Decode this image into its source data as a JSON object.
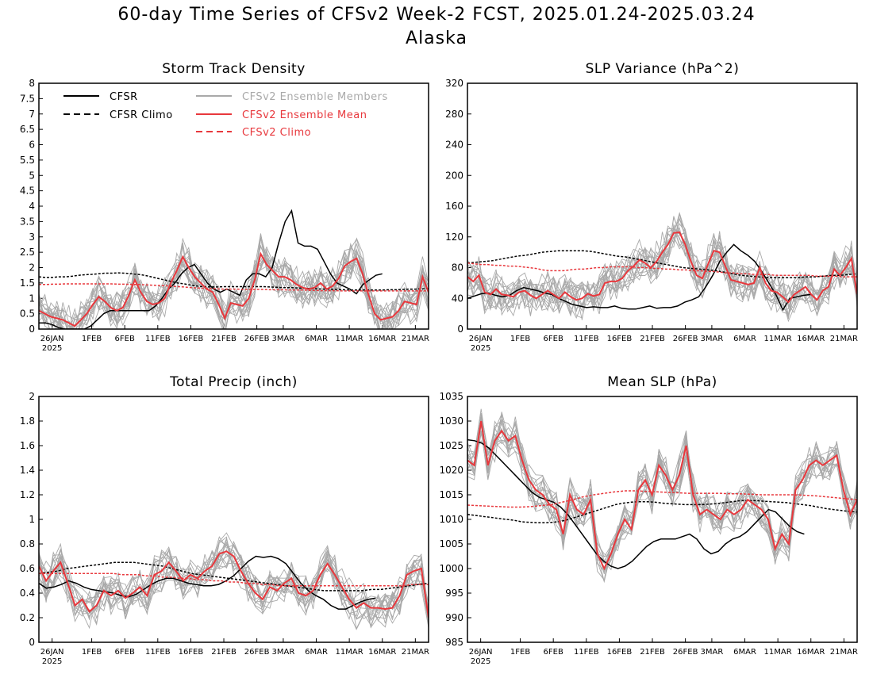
{
  "page": {
    "title": "60-day Time Series of CFSv2 Week-2 FCST, 2025.01.24-2025.03.24",
    "subtitle": "Alaska"
  },
  "colors": {
    "cfsr": "#000000",
    "members": "#a9a9a9",
    "mean": "#e8383d",
    "cfsv2_climo": "#e8383d",
    "cfsr_climo": "#000000"
  },
  "legend": {
    "cfsr": "CFSR",
    "cfsr_climo": "CFSR Climo",
    "members": "CFSv2 Ensemble Members",
    "mean": "CFSv2 Ensemble Mean",
    "cfsv2_climo": "CFSv2 Climo"
  },
  "x_axis": {
    "tick_labels": [
      "26JAN",
      "1FEB",
      "6FEB",
      "11FEB",
      "16FEB",
      "21FEB",
      "26FEB",
      "3MAR",
      "6MAR",
      "11MAR",
      "16MAR",
      "21MAR"
    ],
    "tick_days": [
      2,
      8,
      13,
      18,
      23,
      28,
      33,
      37,
      42,
      47,
      52,
      57
    ],
    "year_label": "2025",
    "day_range": [
      0,
      59
    ]
  },
  "chart_data": [
    {
      "type": "line",
      "title": "Storm Track Density",
      "ylim": [
        0,
        8
      ],
      "y_ticks": [
        "0",
        "0.5",
        "1",
        "1.5",
        "2",
        "2.5",
        "3",
        "3.5",
        "4",
        "4.5",
        "5",
        "5.5",
        "6",
        "6.5",
        "7",
        "7.5",
        "8"
      ],
      "series": [
        {
          "name": "CFSR",
          "values": [
            0.2,
            0.2,
            0.15,
            0.05,
            0,
            0,
            0,
            0,
            0.1,
            0.3,
            0.5,
            0.6,
            0.6,
            0.6,
            0.6,
            0.6,
            0.6,
            0.6,
            0.75,
            1.0,
            1.3,
            1.5,
            1.8,
            2.0,
            2.1,
            1.8,
            1.5,
            1.3,
            1.2,
            1.3,
            1.2,
            1.1,
            1.6,
            1.8,
            1.8,
            1.7,
            2.0,
            2.8,
            3.5,
            3.85,
            2.8,
            2.7,
            2.7,
            2.6,
            2.2,
            1.8,
            1.5,
            1.4,
            1.3,
            1.15,
            1.45,
            1.6,
            1.75,
            1.8
          ]
        },
        {
          "name": "CFSR Climo",
          "values": [
            1.7,
            1.68,
            1.68,
            1.7,
            1.7,
            1.72,
            1.75,
            1.77,
            1.78,
            1.8,
            1.82,
            1.82,
            1.83,
            1.82,
            1.8,
            1.78,
            1.75,
            1.7,
            1.65,
            1.6,
            1.55,
            1.5,
            1.47,
            1.43,
            1.4,
            1.38,
            1.37,
            1.37,
            1.38,
            1.38,
            1.38,
            1.38,
            1.38,
            1.38,
            1.38,
            1.37,
            1.36,
            1.35,
            1.35,
            1.34,
            1.33,
            1.32,
            1.31,
            1.3,
            1.3,
            1.29,
            1.28,
            1.27,
            1.27,
            1.27,
            1.27,
            1.27,
            1.27,
            1.28,
            1.28,
            1.29,
            1.3,
            1.3,
            1.31,
            1.32
          ]
        },
        {
          "name": "CFSv2 Ensemble Mean",
          "values": [
            0.6,
            0.5,
            0.4,
            0.35,
            0.3,
            0.2,
            0.1,
            0.3,
            0.5,
            0.8,
            1.05,
            0.9,
            0.7,
            0.6,
            0.7,
            1.1,
            1.6,
            1.2,
            0.9,
            0.8,
            0.85,
            1.0,
            1.5,
            1.9,
            2.35,
            2.0,
            1.7,
            1.5,
            1.3,
            1.2,
            0.8,
            0.35,
            0.85,
            0.8,
            0.75,
            1.0,
            1.6,
            2.45,
            2.1,
            1.9,
            1.7,
            1.7,
            1.6,
            1.45,
            1.35,
            1.3,
            1.35,
            1.5,
            1.3,
            1.4,
            1.65,
            2.05,
            2.2,
            2.3,
            1.8,
            1.1,
            0.5,
            0.3,
            0.35,
            0.4,
            0.6,
            0.9,
            0.85,
            0.8,
            1.7,
            1.2
          ]
        },
        {
          "name": "CFSv2 Climo",
          "values": [
            1.45,
            1.45,
            1.46,
            1.46,
            1.47,
            1.47,
            1.47,
            1.47,
            1.47,
            1.47,
            1.47,
            1.47,
            1.46,
            1.46,
            1.45,
            1.45,
            1.44,
            1.43,
            1.42,
            1.41,
            1.4,
            1.38,
            1.37,
            1.35,
            1.34,
            1.33,
            1.32,
            1.31,
            1.3,
            1.3,
            1.3,
            1.29,
            1.29,
            1.29,
            1.29,
            1.28,
            1.28,
            1.28,
            1.27,
            1.27,
            1.27,
            1.26,
            1.26,
            1.25,
            1.25,
            1.25,
            1.24,
            1.24,
            1.24,
            1.24,
            1.24,
            1.24,
            1.24,
            1.24,
            1.24,
            1.24,
            1.24,
            1.24,
            1.24,
            1.24
          ]
        }
      ]
    },
    {
      "type": "line",
      "title": "SLP Variance (hPa^2)",
      "ylim": [
        0,
        320
      ],
      "y_ticks": [
        "0",
        "40",
        "80",
        "120",
        "160",
        "200",
        "240",
        "280",
        "320"
      ],
      "series": [
        {
          "name": "CFSR",
          "values": [
            40,
            43,
            46,
            47,
            44,
            42,
            44,
            50,
            54,
            52,
            50,
            47,
            45,
            40,
            36,
            32,
            30,
            28,
            29,
            28,
            28,
            30,
            27,
            26,
            26,
            28,
            30,
            27,
            28,
            28,
            30,
            35,
            38,
            42,
            55,
            70,
            88,
            100,
            110,
            102,
            96,
            88,
            75,
            60,
            45,
            25,
            40,
            42,
            44,
            45
          ]
        },
        {
          "name": "CFSR Climo",
          "values": [
            86,
            87,
            88,
            89,
            91,
            93,
            95,
            96,
            98,
            100,
            101,
            102,
            102,
            102,
            102,
            101,
            99,
            97,
            95,
            94,
            92,
            90,
            88,
            86,
            84,
            82,
            80,
            79,
            78,
            77,
            76,
            74,
            72,
            70,
            69,
            68,
            67,
            67,
            67,
            67,
            67,
            68,
            68,
            69,
            70,
            70,
            71,
            72
          ]
        },
        {
          "name": "CFSv2 Ensemble Mean",
          "values": [
            68,
            62,
            70,
            48,
            45,
            52,
            45,
            44,
            42,
            48,
            50,
            44,
            40,
            45,
            50,
            45,
            40,
            48,
            42,
            38,
            40,
            46,
            43,
            45,
            60,
            62,
            62,
            66,
            76,
            82,
            90,
            86,
            80,
            88,
            100,
            110,
            125,
            126,
            110,
            88,
            70,
            66,
            85,
            102,
            100,
            82,
            64,
            62,
            60,
            58,
            60,
            80,
            60,
            50,
            48,
            42,
            35,
            45,
            50,
            55,
            45,
            38,
            50,
            55,
            78,
            70,
            80,
            92,
            45
          ]
        },
        {
          "name": "CFSv2 Climo",
          "values": [
            86,
            85,
            84,
            84,
            83,
            83,
            82,
            82,
            81,
            80,
            79,
            77,
            76,
            76,
            76,
            77,
            78,
            78,
            79,
            80,
            80,
            81,
            81,
            81,
            81,
            80,
            80,
            79,
            79,
            78,
            78,
            77,
            77,
            76,
            76,
            75,
            75,
            74,
            73,
            73,
            72,
            72,
            71,
            71,
            71,
            70,
            70,
            70,
            70,
            70,
            70,
            69,
            69,
            69,
            69,
            68,
            68,
            68
          ]
        }
      ]
    },
    {
      "type": "line",
      "title": "Total Precip (inch)",
      "ylim": [
        0,
        2
      ],
      "y_ticks": [
        "0",
        "0.2",
        "0.4",
        "0.6",
        "0.8",
        "1",
        "1.2",
        "1.4",
        "1.6",
        "1.8",
        "2"
      ],
      "series": [
        {
          "name": "CFSR",
          "values": [
            0.48,
            0.44,
            0.45,
            0.47,
            0.5,
            0.48,
            0.45,
            0.43,
            0.42,
            0.41,
            0.4,
            0.38,
            0.37,
            0.39,
            0.43,
            0.47,
            0.5,
            0.52,
            0.52,
            0.5,
            0.48,
            0.47,
            0.46,
            0.46,
            0.47,
            0.5,
            0.54,
            0.6,
            0.66,
            0.7,
            0.69,
            0.7,
            0.68,
            0.64,
            0.56,
            0.48,
            0.42,
            0.38,
            0.35,
            0.3,
            0.27,
            0.27,
            0.3,
            0.33,
            0.35,
            0.36
          ]
        },
        {
          "name": "CFSR Climo",
          "values": [
            0.56,
            0.57,
            0.58,
            0.6,
            0.61,
            0.62,
            0.63,
            0.64,
            0.65,
            0.65,
            0.65,
            0.64,
            0.63,
            0.62,
            0.6,
            0.58,
            0.56,
            0.55,
            0.54,
            0.53,
            0.52,
            0.51,
            0.5,
            0.49,
            0.48,
            0.47,
            0.46,
            0.45,
            0.44,
            0.43,
            0.42,
            0.42,
            0.42,
            0.42,
            0.42,
            0.43,
            0.43,
            0.44,
            0.45,
            0.46,
            0.47,
            0.48
          ]
        },
        {
          "name": "CFSv2 Ensemble Mean",
          "values": [
            0.62,
            0.5,
            0.58,
            0.65,
            0.48,
            0.3,
            0.35,
            0.25,
            0.3,
            0.42,
            0.38,
            0.42,
            0.36,
            0.4,
            0.45,
            0.38,
            0.55,
            0.58,
            0.65,
            0.58,
            0.5,
            0.55,
            0.52,
            0.58,
            0.62,
            0.72,
            0.74,
            0.7,
            0.58,
            0.48,
            0.4,
            0.35,
            0.45,
            0.42,
            0.48,
            0.52,
            0.4,
            0.38,
            0.42,
            0.55,
            0.64,
            0.55,
            0.45,
            0.35,
            0.28,
            0.32,
            0.28,
            0.28,
            0.27,
            0.28,
            0.38,
            0.55,
            0.58,
            0.6,
            0.2
          ]
        },
        {
          "name": "CFSv2 Climo",
          "values": [
            0.56,
            0.56,
            0.56,
            0.56,
            0.56,
            0.56,
            0.56,
            0.56,
            0.56,
            0.56,
            0.55,
            0.55,
            0.55,
            0.54,
            0.54,
            0.53,
            0.53,
            0.52,
            0.52,
            0.51,
            0.51,
            0.5,
            0.5,
            0.49,
            0.49,
            0.48,
            0.48,
            0.47,
            0.47,
            0.46,
            0.46,
            0.46,
            0.46,
            0.46,
            0.46,
            0.46,
            0.46,
            0.46,
            0.46,
            0.46,
            0.46,
            0.46,
            0.46,
            0.46,
            0.46,
            0.47,
            0.47,
            0.47
          ]
        }
      ]
    },
    {
      "type": "line",
      "title": "Mean SLP (hPa)",
      "ylim": [
        985,
        1035
      ],
      "y_ticks": [
        "985",
        "990",
        "995",
        "1000",
        "1005",
        "1010",
        "1015",
        "1020",
        "1025",
        "1030",
        "1035"
      ],
      "series": [
        {
          "name": "CFSR",
          "values": [
            1026.2,
            1026,
            1025.5,
            1024.5,
            1023,
            1021.5,
            1020,
            1018.5,
            1017,
            1015.5,
            1014.5,
            1014,
            1013.5,
            1012.5,
            1011,
            1009,
            1007,
            1005,
            1003,
            1001.5,
            1000.5,
            1000,
            1000.5,
            1001.5,
            1003,
            1004.5,
            1005.5,
            1006,
            1006,
            1006,
            1006.5,
            1007,
            1006,
            1004,
            1003,
            1003.5,
            1005,
            1006,
            1006.5,
            1007.5,
            1009,
            1010.5,
            1012,
            1011.5,
            1010,
            1008.5,
            1007.5,
            1007
          ]
        },
        {
          "name": "CFSR Climo",
          "values": [
            1011,
            1010.8,
            1010.6,
            1010.4,
            1010.2,
            1010,
            1009.8,
            1009.5,
            1009.4,
            1009.3,
            1009.3,
            1009.4,
            1009.6,
            1010,
            1010.5,
            1011,
            1011.5,
            1012,
            1012.5,
            1013,
            1013.3,
            1013.5,
            1013.6,
            1013.6,
            1013.5,
            1013.3,
            1013.2,
            1013.1,
            1013,
            1013,
            1013,
            1013.1,
            1013.2,
            1013.4,
            1013.6,
            1013.8,
            1013.8,
            1013.8,
            1013.7,
            1013.6,
            1013.5,
            1013.4,
            1013.2,
            1013,
            1012.8,
            1012.5,
            1012.2,
            1012,
            1011.8,
            1011.6,
            1011.5
          ]
        },
        {
          "name": "CFSv2 Ensemble Mean",
          "values": [
            1022,
            1021,
            1030,
            1021,
            1026,
            1028,
            1026,
            1027,
            1022,
            1018,
            1016,
            1015,
            1013,
            1012,
            1007,
            1015,
            1012,
            1011,
            1014,
            1003,
            1000,
            1003,
            1007,
            1010,
            1008,
            1016,
            1018,
            1015,
            1021,
            1019,
            1016,
            1019,
            1025,
            1015,
            1011,
            1012,
            1011,
            1010,
            1012,
            1011,
            1012,
            1014,
            1013,
            1012,
            1010,
            1004,
            1007,
            1005,
            1016,
            1018,
            1021,
            1022,
            1021,
            1022,
            1023,
            1016,
            1011,
            1014
          ]
        },
        {
          "name": "CFSv2 Climo",
          "values": [
            1012.9,
            1012.8,
            1012.7,
            1012.6,
            1012.5,
            1012.5,
            1012.6,
            1012.8,
            1013,
            1013.5,
            1014,
            1014.6,
            1015,
            1015.3,
            1015.6,
            1015.8,
            1015.8,
            1015.7,
            1015.6,
            1015.5,
            1015.4,
            1015.3,
            1015.3,
            1015.3,
            1015.3,
            1015.2,
            1015.2,
            1015.1,
            1015,
            1015,
            1015,
            1015,
            1014.9,
            1014.8,
            1014.6,
            1014.4,
            1014.2,
            1014
          ]
        }
      ]
    }
  ]
}
